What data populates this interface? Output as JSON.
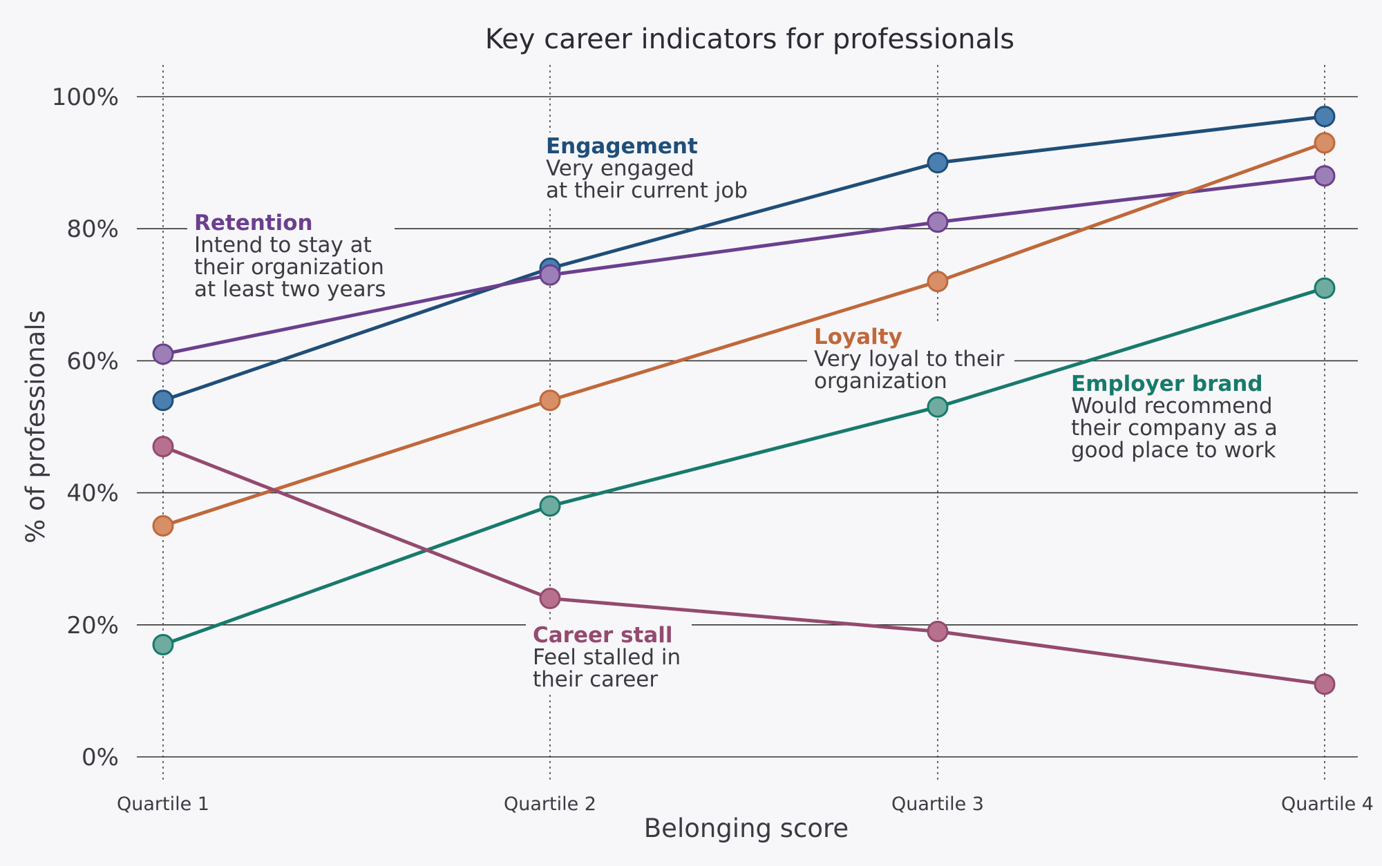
{
  "chart_data": {
    "type": "line",
    "title": "Key career indicators for professionals",
    "xlabel": "Belonging score",
    "ylabel": "% of professionals",
    "categories": [
      "Quartile 1",
      "Quartile 2",
      "Quartile 3",
      "Quartile 4"
    ],
    "ylim": [
      0,
      100
    ],
    "yticks": [
      "0%",
      "20%",
      "40%",
      "60%",
      "80%",
      "100%"
    ],
    "grid": true,
    "series": [
      {
        "name": "Engagement",
        "description": [
          "Very engaged",
          "at their current job"
        ],
        "values": [
          54,
          74,
          90,
          97
        ],
        "color": "#1f4e79",
        "marker": "#4a7fb0"
      },
      {
        "name": "Retention",
        "description": [
          "Intend to stay at",
          "their organization",
          "at least two years"
        ],
        "values": [
          61,
          73,
          81,
          88
        ],
        "color": "#6b3f8e",
        "marker": "#9d7fb8"
      },
      {
        "name": "Loyalty",
        "description": [
          "Very loyal to their",
          "organization"
        ],
        "values": [
          35,
          54,
          72,
          93
        ],
        "color": "#c0683a",
        "marker": "#d68f66"
      },
      {
        "name": "Employer brand",
        "description": [
          "Would recommend",
          "their company as a",
          "good place to work"
        ],
        "values": [
          17,
          38,
          53,
          71
        ],
        "color": "#177a6c",
        "marker": "#6fab9f"
      },
      {
        "name": "Career stall",
        "description": [
          "Feel stalled in",
          "their career"
        ],
        "values": [
          47,
          24,
          19,
          11
        ],
        "color": "#944a6e",
        "marker": "#b7718f"
      }
    ]
  }
}
